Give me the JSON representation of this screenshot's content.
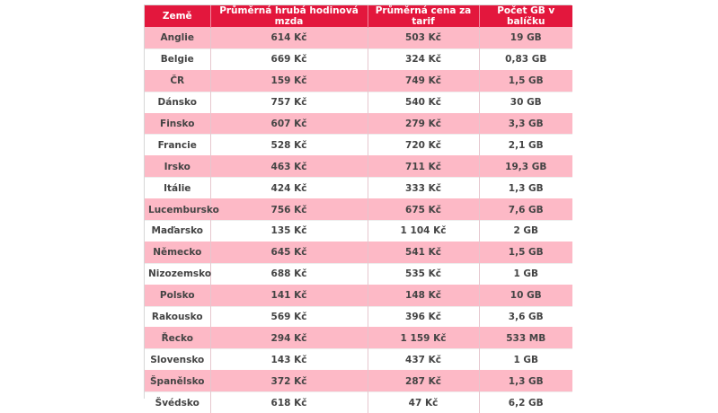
{
  "table": {
    "headers": [
      "Země",
      "Průměrná hrubá hodinová mzda",
      "Průměrná cena za tarif",
      "Počet GB v balíčku"
    ],
    "rows": [
      [
        "Anglie",
        "614 Kč",
        "503 Kč",
        "19 GB"
      ],
      [
        "Belgie",
        "669 Kč",
        "324 Kč",
        "0,83 GB"
      ],
      [
        "ČR",
        "159 Kč",
        "749 Kč",
        "1,5 GB"
      ],
      [
        "Dánsko",
        "757 Kč",
        "540 Kč",
        "30 GB"
      ],
      [
        "Finsko",
        "607 Kč",
        "279 Kč",
        "3,3 GB"
      ],
      [
        "Francie",
        "528 Kč",
        "720 Kč",
        "2,1 GB"
      ],
      [
        "Irsko",
        "463 Kč",
        "711 Kč",
        "19,3 GB"
      ],
      [
        "Itálie",
        "424 Kč",
        "333 Kč",
        "1,3 GB"
      ],
      [
        "Lucembursko",
        "756 Kč",
        "675 Kč",
        "7,6 GB"
      ],
      [
        "Maďarsko",
        "135 Kč",
        "1 104 Kč",
        "2 GB"
      ],
      [
        "Německo",
        "645 Kč",
        "541 Kč",
        "1,5 GB"
      ],
      [
        "Nizozemsko",
        "688 Kč",
        "535 Kč",
        "1 GB"
      ],
      [
        "Polsko",
        "141 Kč",
        "148 Kč",
        "10 GB"
      ],
      [
        "Rakousko",
        "569 Kč",
        "396 Kč",
        "3,6 GB"
      ],
      [
        "Řecko",
        "294 Kč",
        "1 159 Kč",
        "533 MB"
      ],
      [
        "Slovensko",
        "143 Kč",
        "437 Kč",
        "1 GB"
      ],
      [
        "Španělsko",
        "372 Kč",
        "287 Kč",
        "1,3 GB"
      ],
      [
        "Švédsko",
        "618 Kč",
        "47 Kč",
        "6,2 GB"
      ]
    ]
  },
  "colors": {
    "header_bg": "#e3173d",
    "row_pink": "#fdb9c6",
    "row_white": "#ffffff"
  }
}
